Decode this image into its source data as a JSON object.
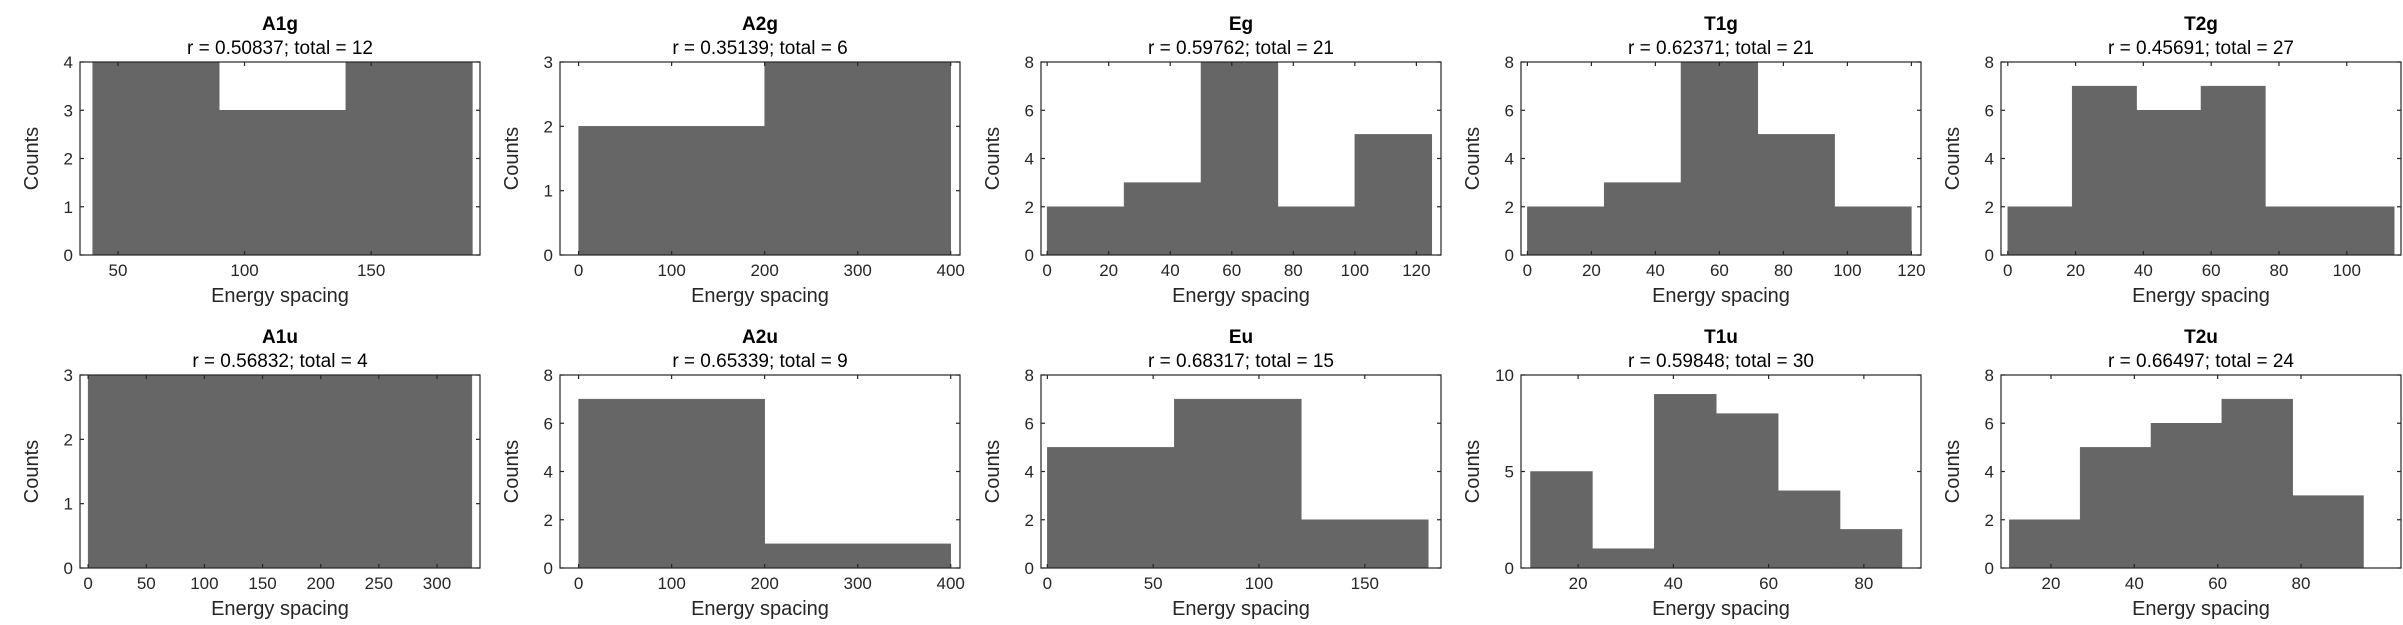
{
  "chart_data": [
    {
      "type": "bar",
      "title": "A1g",
      "subtitle": "r = 0.50837; total = 12",
      "xlabel": "Energy spacing",
      "ylabel": "Counts",
      "xlim": [
        35,
        193
      ],
      "ylim": [
        0,
        4
      ],
      "xticks": [
        50,
        100,
        150
      ],
      "xticklabels": [
        "50",
        "100",
        "150"
      ],
      "yticks": [
        0,
        1,
        2,
        3,
        4
      ],
      "yticklabels": [
        "0",
        "1",
        "2",
        "3",
        "4"
      ],
      "edges": [
        40,
        90,
        140,
        190
      ],
      "values": [
        4,
        3,
        4
      ]
    },
    {
      "type": "bar",
      "title": "A2g",
      "subtitle": "r = 0.35139; total = 6",
      "xlabel": "Energy spacing",
      "ylabel": "Counts",
      "xlim": [
        -20,
        410
      ],
      "ylim": [
        0,
        3
      ],
      "xticks": [
        0,
        100,
        200,
        300,
        400
      ],
      "xticklabels": [
        "0",
        "100",
        "200",
        "300",
        "400"
      ],
      "yticks": [
        0,
        1,
        2,
        3
      ],
      "yticklabels": [
        "0",
        "1",
        "2",
        "3"
      ],
      "edges": [
        0,
        200,
        400
      ],
      "values": [
        2,
        3
      ]
    },
    {
      "type": "bar",
      "title": "Eg",
      "subtitle": "r = 0.59762; total = 21",
      "xlabel": "Energy spacing",
      "ylabel": "Counts",
      "xlim": [
        -2,
        128
      ],
      "ylim": [
        0,
        8
      ],
      "xticks": [
        0,
        20,
        40,
        60,
        80,
        100,
        120
      ],
      "xticklabels": [
        "0",
        "20",
        "40",
        "60",
        "80",
        "100",
        "120"
      ],
      "yticks": [
        0,
        2,
        4,
        6,
        8
      ],
      "yticklabels": [
        "0",
        "2",
        "4",
        "6",
        "8"
      ],
      "edges": [
        0,
        25,
        50,
        75,
        100,
        125
      ],
      "values": [
        2,
        3,
        8,
        2,
        5
      ]
    },
    {
      "type": "bar",
      "title": "T1g",
      "subtitle": "r = 0.62371; total = 21",
      "xlabel": "Energy spacing",
      "ylabel": "Counts",
      "xlim": [
        -2,
        123
      ],
      "ylim": [
        0,
        8
      ],
      "xticks": [
        0,
        20,
        40,
        60,
        80,
        100,
        120
      ],
      "xticklabels": [
        "0",
        "20",
        "40",
        "60",
        "80",
        "100",
        "120"
      ],
      "yticks": [
        0,
        2,
        4,
        6,
        8
      ],
      "yticklabels": [
        "0",
        "2",
        "4",
        "6",
        "8"
      ],
      "edges": [
        0,
        24,
        48,
        72,
        96,
        120
      ],
      "values": [
        2,
        3,
        8,
        5,
        2
      ]
    },
    {
      "type": "bar",
      "title": "T2g",
      "subtitle": "r = 0.45691; total = 27",
      "xlabel": "Energy spacing",
      "ylabel": "Counts",
      "xlim": [
        -2,
        116
      ],
      "ylim": [
        0,
        8
      ],
      "xticks": [
        0,
        20,
        40,
        60,
        80,
        100
      ],
      "xticklabels": [
        "0",
        "20",
        "40",
        "60",
        "80",
        "100"
      ],
      "yticks": [
        0,
        2,
        4,
        6,
        8
      ],
      "yticklabels": [
        "0",
        "2",
        "4",
        "6",
        "8"
      ],
      "edges": [
        0,
        19,
        38,
        57,
        76,
        95,
        114
      ],
      "values": [
        2,
        7,
        6,
        7,
        2,
        2
      ]
    },
    {
      "type": "bar",
      "title": "A1u",
      "subtitle": "r = 0.56832; total = 4",
      "xlabel": "Energy spacing",
      "ylabel": "Counts",
      "xlim": [
        -7,
        337
      ],
      "ylim": [
        0,
        3
      ],
      "xticks": [
        0,
        50,
        100,
        150,
        200,
        250,
        300
      ],
      "xticklabels": [
        "0",
        "50",
        "100",
        "150",
        "200",
        "250",
        "300"
      ],
      "yticks": [
        0,
        1,
        2,
        3
      ],
      "yticklabels": [
        "0",
        "1",
        "2",
        "3"
      ],
      "edges": [
        0,
        330
      ],
      "values": [
        3
      ]
    },
    {
      "type": "bar",
      "title": "A2u",
      "subtitle": "r = 0.65339; total = 9",
      "xlabel": "Energy spacing",
      "ylabel": "Counts",
      "xlim": [
        -20,
        410
      ],
      "ylim": [
        0,
        8
      ],
      "xticks": [
        0,
        100,
        200,
        300,
        400
      ],
      "xticklabels": [
        "0",
        "100",
        "200",
        "300",
        "400"
      ],
      "yticks": [
        0,
        2,
        4,
        6,
        8
      ],
      "yticklabels": [
        "0",
        "2",
        "4",
        "6",
        "8"
      ],
      "edges": [
        0,
        200,
        400
      ],
      "values": [
        7,
        1
      ]
    },
    {
      "type": "bar",
      "title": "Eu",
      "subtitle": "r = 0.68317; total = 15",
      "xlabel": "Energy spacing",
      "ylabel": "Counts",
      "xlim": [
        -3,
        186
      ],
      "ylim": [
        0,
        8
      ],
      "xticks": [
        0,
        50,
        100,
        150
      ],
      "xticklabels": [
        "0",
        "50",
        "100",
        "150"
      ],
      "yticks": [
        0,
        2,
        4,
        6,
        8
      ],
      "yticklabels": [
        "0",
        "2",
        "4",
        "6",
        "8"
      ],
      "edges": [
        0,
        60,
        120,
        180
      ],
      "values": [
        5,
        7,
        2
      ]
    },
    {
      "type": "bar",
      "title": "T1u",
      "subtitle": "r = 0.59848; total = 30",
      "xlabel": "Energy spacing",
      "ylabel": "Counts",
      "xlim": [
        8,
        92
      ],
      "ylim": [
        0,
        10
      ],
      "xticks": [
        20,
        40,
        60,
        80
      ],
      "xticklabels": [
        "20",
        "40",
        "60",
        "80"
      ],
      "yticks": [
        0,
        5,
        10
      ],
      "yticklabels": [
        "0",
        "5",
        "10"
      ],
      "edges": [
        10,
        23,
        36,
        49,
        62,
        75,
        88
      ],
      "values": [
        5,
        1,
        9,
        8,
        4,
        2
      ]
    },
    {
      "type": "bar",
      "title": "T2u",
      "subtitle": "r = 0.66497; total = 24",
      "xlabel": "Energy spacing",
      "ylabel": "Counts",
      "xlim": [
        8,
        104
      ],
      "ylim": [
        0,
        8
      ],
      "xticks": [
        20,
        40,
        60,
        80
      ],
      "xticklabels": [
        "20",
        "40",
        "60",
        "80"
      ],
      "yticks": [
        0,
        2,
        4,
        6,
        8
      ],
      "yticklabels": [
        "0",
        "2",
        "4",
        "6",
        "8"
      ],
      "edges": [
        10,
        27,
        44,
        61,
        78,
        95
      ],
      "values": [
        2,
        5,
        6,
        7,
        3
      ]
    }
  ]
}
